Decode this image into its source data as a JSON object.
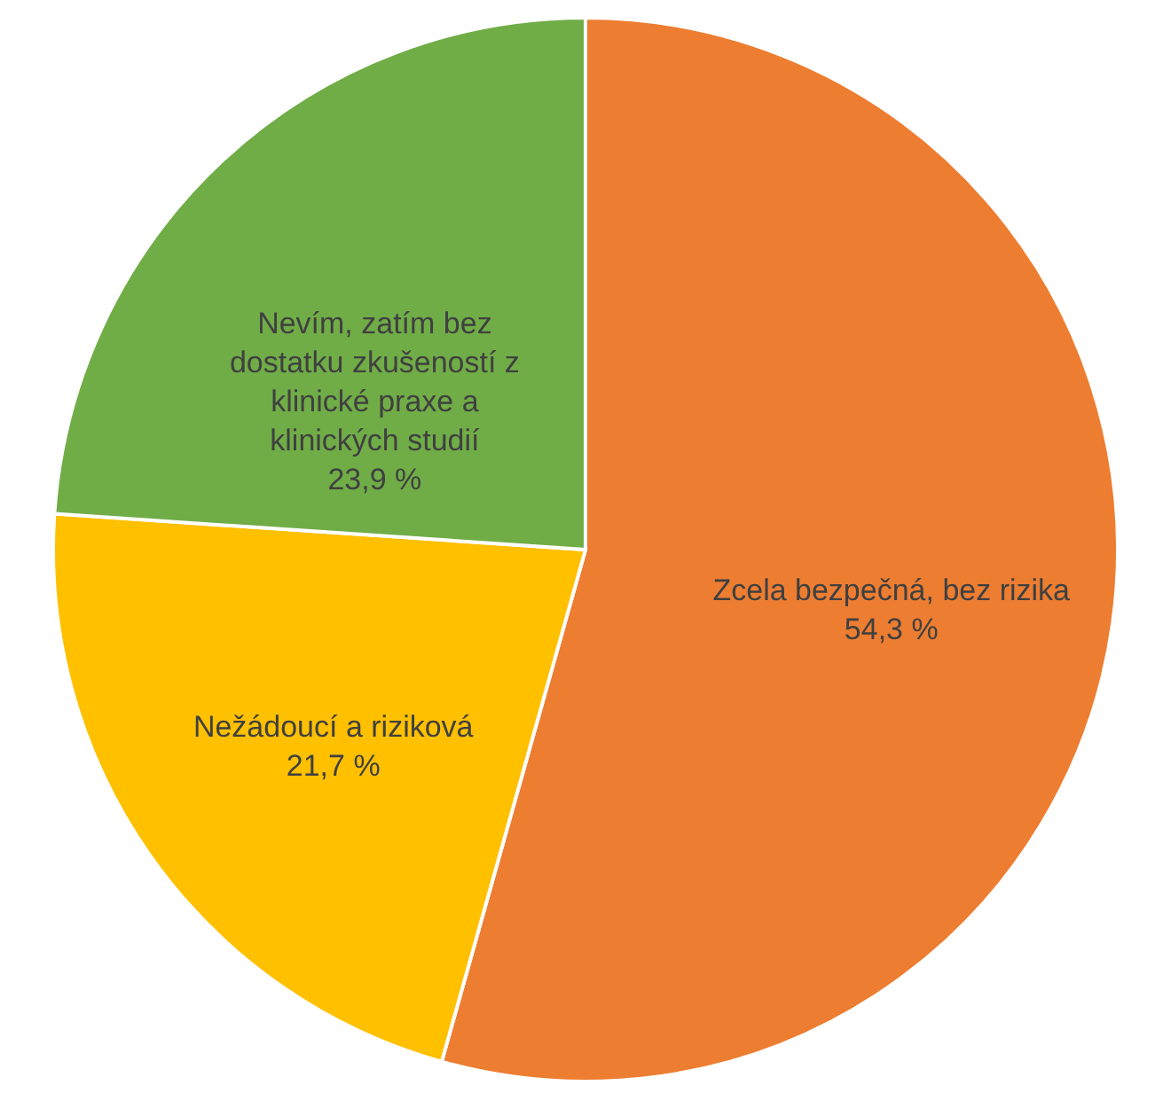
{
  "chart_data": {
    "type": "pie",
    "categories": [
      "Zcela bezpečná, bez rizika",
      "Nežádoucí a riziková",
      "Nevím, zatím bez dostatku zkušeností z klinické praxe a klinických studií"
    ],
    "values": [
      54.3,
      21.7,
      23.9
    ],
    "value_labels": [
      "54,3 %",
      "21,7 %",
      "23,9 %"
    ],
    "colors": [
      "#ed7d31",
      "#ffc000",
      "#70ad47"
    ]
  }
}
